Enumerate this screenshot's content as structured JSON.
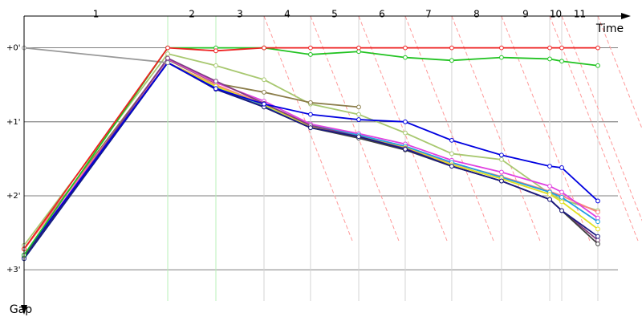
{
  "chart_data": {
    "type": "line",
    "x_label": "Time",
    "y_label": "Gap",
    "laps": [
      "1",
      "2",
      "3",
      "4",
      "5",
      "6",
      "7",
      "8",
      "9",
      "10",
      "11"
    ],
    "x": [
      0,
      1.946,
      2.598,
      3.25,
      3.88,
      4.533,
      5.163,
      5.793,
      6.467,
      7.12,
      7.283,
      7.772
    ],
    "xlim": [
      0,
      8.37
    ],
    "ylim": [
      -0.43,
      3.53
    ],
    "yticks": [
      {
        "value": 0,
        "label": "+0'"
      },
      {
        "value": 1,
        "label": "+1'"
      },
      {
        "value": 2,
        "label": "+2'"
      },
      {
        "value": 3,
        "label": "+3'"
      }
    ],
    "grid": true,
    "series": [
      {
        "color": "#a8c870",
        "values": [
          2.67,
          0.08,
          0.24,
          0.43,
          0.76,
          0.9,
          1.15,
          1.43,
          1.51,
          1.97,
          2.05,
          2.2
        ]
      },
      {
        "color": "#8b7d4a",
        "values": [
          2.72,
          0.16,
          0.48,
          0.6,
          0.74,
          0.8,
          null,
          null,
          null,
          null,
          null,
          null
        ]
      },
      {
        "color": "#ff8080",
        "values": [
          2.72,
          0.2,
          0.5,
          0.76,
          1.04,
          1.18,
          1.34,
          1.56,
          1.74,
          1.94,
          2.0,
          2.22
        ]
      },
      {
        "color": "#e040e0",
        "values": [
          2.8,
          0.15,
          0.47,
          0.72,
          1.03,
          1.16,
          1.3,
          1.52,
          1.68,
          1.87,
          1.95,
          2.3
        ]
      },
      {
        "color": "#20a0e0",
        "values": [
          2.85,
          0.2,
          0.53,
          0.78,
          1.05,
          1.18,
          1.33,
          1.55,
          1.75,
          1.95,
          2.02,
          2.35
        ]
      },
      {
        "color": "#e0e020",
        "values": [
          2.8,
          0.2,
          0.52,
          0.77,
          1.06,
          1.2,
          1.35,
          1.58,
          1.77,
          1.98,
          2.08,
          2.45
        ]
      },
      {
        "color": "#804080",
        "values": [
          2.83,
          0.14,
          0.45,
          0.75,
          1.05,
          1.2,
          1.36,
          1.6,
          1.8,
          2.05,
          2.2,
          2.6
        ]
      },
      {
        "color": "#404040",
        "values": [
          2.83,
          0.2,
          0.55,
          0.8,
          1.08,
          1.22,
          1.38,
          1.6,
          1.8,
          2.05,
          2.2,
          2.65
        ]
      },
      {
        "color": "#1a1a80",
        "values": [
          2.85,
          0.2,
          0.56,
          0.8,
          1.08,
          1.2,
          1.37,
          1.6,
          1.8,
          2.05,
          2.2,
          2.55
        ]
      },
      {
        "color": "#0000e0",
        "values": [
          2.8,
          0.2,
          0.55,
          0.76,
          0.9,
          0.97,
          1.0,
          1.25,
          1.45,
          1.6,
          1.62,
          2.07
        ]
      },
      {
        "color": "#999999",
        "values": [
          0,
          0.2,
          null,
          null,
          null,
          null,
          null,
          null,
          null,
          null,
          null,
          null
        ]
      },
      {
        "color": "#22c322",
        "values": [
          2.8,
          0,
          0,
          0,
          0.09,
          0.05,
          0.13,
          0.17,
          0.13,
          0.15,
          0.18,
          0.24
        ]
      },
      {
        "color": "#ee2020",
        "values": [
          2.72,
          0,
          0.04,
          0,
          0,
          0,
          0,
          0,
          0,
          0,
          0,
          0
        ]
      }
    ]
  }
}
